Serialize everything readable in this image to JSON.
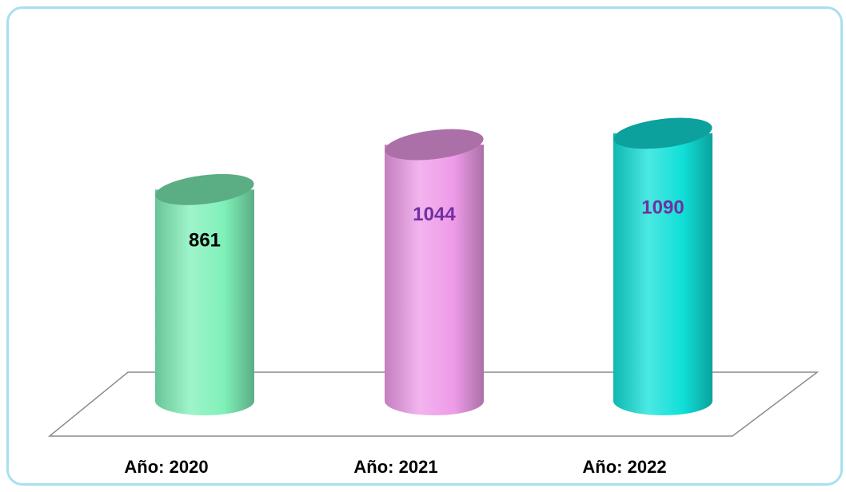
{
  "chart_data": {
    "type": "bar",
    "style": "3d-cylinder",
    "categories": [
      "Año: 2020",
      "Año: 2021",
      "Año: 2022"
    ],
    "values": [
      861,
      1044,
      1090
    ],
    "bar_colors": [
      "#7ff0b8",
      "#ee9be8",
      "#10e0d8"
    ],
    "label_colors": [
      "#000000",
      "#7030a0",
      "#7030a0"
    ],
    "title": "",
    "xlabel": "",
    "ylabel": "",
    "grid": false,
    "legend": "none"
  }
}
